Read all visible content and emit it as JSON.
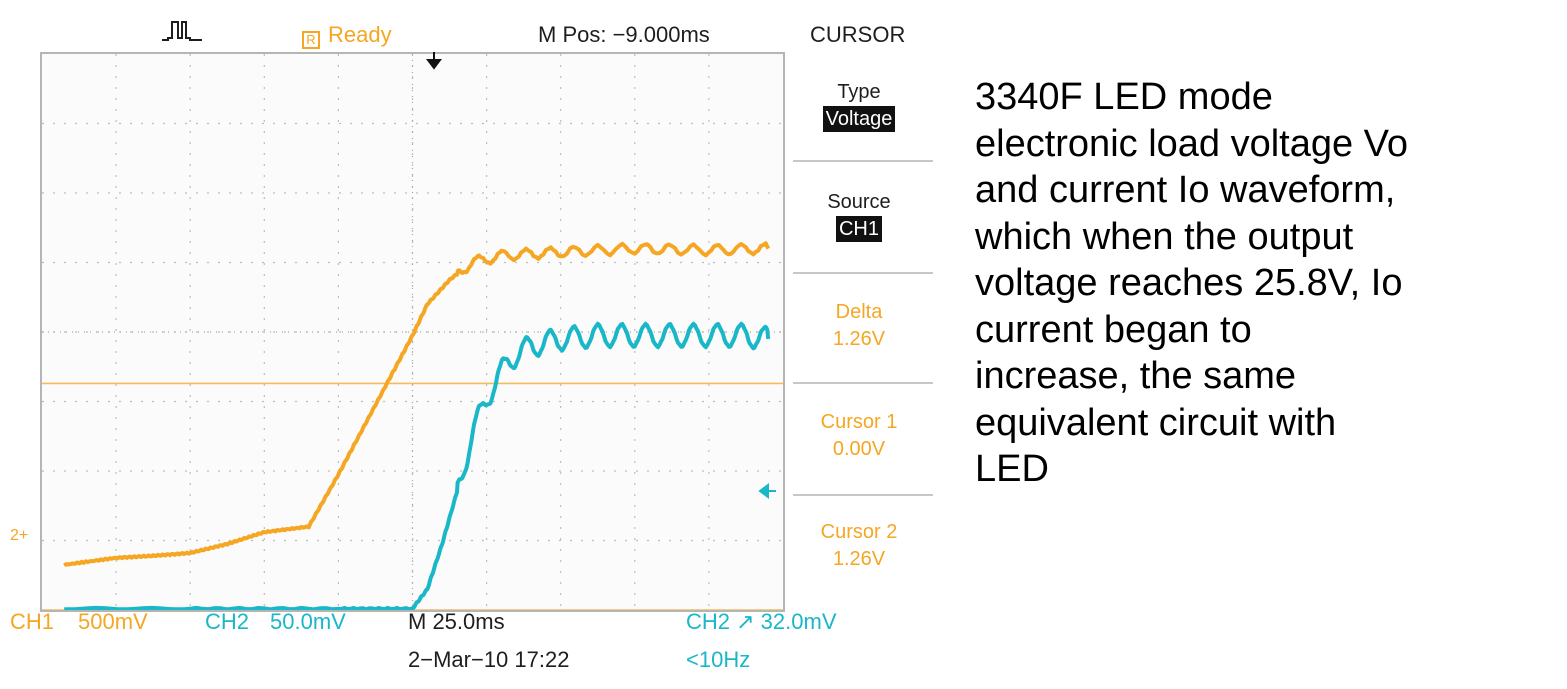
{
  "status_bar": {
    "trigger_icon": "pulse-trigger-icon",
    "state_icon": "run-state-icon",
    "state_icon_text": "R",
    "state": "Ready",
    "position": "M Pos: −9.000ms",
    "menu_title": "CURSOR"
  },
  "cursor_menu": {
    "type_label": "Type",
    "type_value": "Voltage",
    "source_label": "Source",
    "source_value": "CH1",
    "delta_label": "Delta",
    "delta_value": "1.26V",
    "cursor1_label": "Cursor 1",
    "cursor1_value": "0.00V",
    "cursor2_label": "Cursor 2",
    "cursor2_value": "1.26V"
  },
  "bottom_bar": {
    "ch1_label": "CH1",
    "ch1_scale": "500mV",
    "ch2_label": "CH2",
    "ch2_scale": "50.0mV",
    "timebase": "M 25.0ms",
    "trigger": "CH2 ↗ 32.0mV",
    "date": "2−Mar−10 17:22",
    "frequency": "<10Hz"
  },
  "markers": {
    "ch2_ground": "2+",
    "trigger_position_icon": "trigger-position-arrow-icon",
    "trigger_level_icon": "trigger-level-arrow-icon"
  },
  "colors": {
    "ch1": "#f5a623",
    "ch2": "#1ab7c9",
    "grid": "#b5b5b5",
    "text": "#1e1e1e"
  },
  "chart_data": {
    "type": "line",
    "title": "",
    "xlabel": "",
    "ylabel": "",
    "x_divisions": 10,
    "y_divisions": 8,
    "grid": true,
    "series": [
      {
        "name": "CH1",
        "color": "#f5a623",
        "x": [
          0.3,
          1.0,
          1.5,
          2.0,
          2.5,
          3.0,
          3.6,
          4.0,
          4.3,
          4.7,
          5.0,
          5.2,
          5.5,
          5.8,
          6.2,
          7.0,
          8.0,
          9.0,
          9.8
        ],
        "y": [
          0.65,
          0.75,
          0.78,
          0.82,
          0.95,
          1.12,
          1.2,
          1.95,
          2.55,
          3.35,
          3.95,
          4.4,
          4.75,
          5.0,
          5.1,
          5.15,
          5.2,
          5.18,
          5.2
        ]
      },
      {
        "name": "CH2",
        "color": "#1ab7c9",
        "x": [
          0.3,
          2.0,
          4.0,
          5.0,
          5.2,
          5.4,
          5.6,
          5.8,
          6.0,
          6.3,
          6.6,
          7.0,
          7.5,
          8.0,
          8.5,
          9.0,
          9.5,
          9.8
        ],
        "y": [
          0.02,
          0.02,
          0.02,
          0.02,
          0.3,
          0.95,
          1.7,
          2.5,
          3.05,
          3.6,
          3.8,
          3.9,
          3.95,
          3.95,
          3.95,
          3.95,
          3.95,
          3.9
        ]
      }
    ],
    "cursor_lines": [
      {
        "name": "Cursor 1",
        "y": 0.0,
        "color": "#f5a623"
      },
      {
        "name": "Cursor 2",
        "y": 3.26,
        "color": "#f5a623"
      }
    ]
  },
  "caption": "3340F LED mode\nelectronic load voltage Vo\nand current Io waveform,\nwhich when the output\nvoltage reaches 25.8V, Io\ncurrent began to\nincrease, the same\nequivalent circuit with\nLED"
}
